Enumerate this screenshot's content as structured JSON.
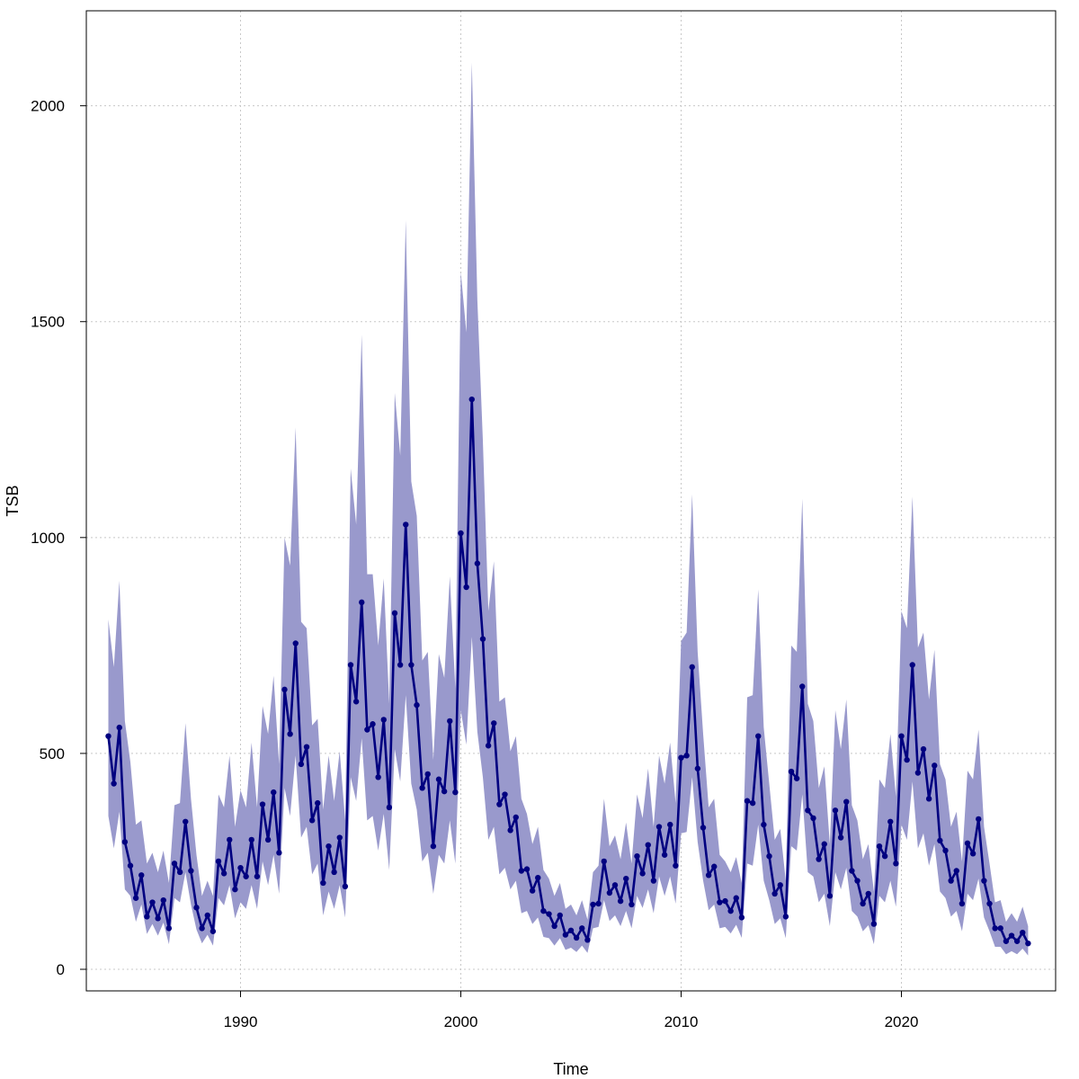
{
  "chart_data": {
    "type": "line",
    "xlabel": "Time",
    "ylabel": "TSB",
    "xlim": [
      1983.0,
      2027.0
    ],
    "ylim": [
      -50,
      2220
    ],
    "xticks": [
      1990,
      2000,
      2010,
      2020
    ],
    "xtick_labels": [
      "1990",
      "2000",
      "2010",
      "2020"
    ],
    "yticks": [
      0,
      500,
      1000,
      1500,
      2000
    ],
    "ytick_labels": [
      "0",
      "500",
      "1000",
      "1500",
      "2000"
    ],
    "grid": true,
    "colors": {
      "line": "#000080",
      "band": "#9999cc"
    },
    "series": [
      {
        "style": "line-with-points",
        "x": [
          1984.0,
          1984.25,
          1984.5,
          1984.75,
          1985.0,
          1985.25,
          1985.5,
          1985.75,
          1986.0,
          1986.25,
          1986.5,
          1986.75,
          1987.0,
          1987.25,
          1987.5,
          1987.75,
          1988.0,
          1988.25,
          1988.5,
          1988.75,
          1989.0,
          1989.25,
          1989.5,
          1989.75,
          1990.0,
          1990.25,
          1990.5,
          1990.75,
          1991.0,
          1991.25,
          1991.5,
          1991.75,
          1992.0,
          1992.25,
          1992.5,
          1992.75,
          1993.0,
          1993.25,
          1993.5,
          1993.75,
          1994.0,
          1994.25,
          1994.5,
          1994.75,
          1995.0,
          1995.25,
          1995.5,
          1995.75,
          1996.0,
          1996.25,
          1996.5,
          1996.75,
          1997.0,
          1997.25,
          1997.5,
          1997.75,
          1998.0,
          1998.25,
          1998.5,
          1998.75,
          1999.0,
          1999.25,
          1999.5,
          1999.75,
          2000.0,
          2000.25,
          2000.5,
          2000.75,
          2001.0,
          2001.25,
          2001.5,
          2001.75,
          2002.0,
          2002.25,
          2002.5,
          2002.75,
          2003.0,
          2003.25,
          2003.5,
          2003.75,
          2004.0,
          2004.25,
          2004.5,
          2004.75,
          2005.0,
          2005.25,
          2005.5,
          2005.75,
          2006.0,
          2006.25,
          2006.5,
          2006.75,
          2007.0,
          2007.25,
          2007.5,
          2007.75,
          2008.0,
          2008.25,
          2008.5,
          2008.75,
          2009.0,
          2009.25,
          2009.5,
          2009.75,
          2010.0,
          2010.25,
          2010.5,
          2010.75,
          2011.0,
          2011.25,
          2011.5,
          2011.75,
          2012.0,
          2012.25,
          2012.5,
          2012.75,
          2013.0,
          2013.25,
          2013.5,
          2013.75,
          2014.0,
          2014.25,
          2014.5,
          2014.75,
          2015.0,
          2015.25,
          2015.5,
          2015.75,
          2016.0,
          2016.25,
          2016.5,
          2016.75,
          2017.0,
          2017.25,
          2017.5,
          2017.75,
          2018.0,
          2018.25,
          2018.5,
          2018.75,
          2019.0,
          2019.25,
          2019.5,
          2019.75,
          2020.0,
          2020.25,
          2020.5,
          2020.75,
          2021.0,
          2021.25,
          2021.5,
          2021.75,
          2022.0,
          2022.25,
          2022.5,
          2022.75,
          2023.0,
          2023.25,
          2023.5,
          2023.75,
          2024.0,
          2024.25,
          2024.5,
          2024.75,
          2025.0,
          2025.25,
          2025.5,
          2025.75
        ],
        "y": [
          540,
          430,
          560,
          295,
          240,
          165,
          218,
          122,
          155,
          118,
          160,
          95,
          245,
          225,
          342,
          228,
          143,
          95,
          125,
          88,
          250,
          222,
          300,
          185,
          235,
          215,
          300,
          215,
          382,
          300,
          410,
          270,
          648,
          545,
          755,
          475,
          515,
          345,
          385,
          200,
          285,
          225,
          305,
          192,
          705,
          620,
          850,
          555,
          568,
          445,
          578,
          375,
          825,
          705,
          1030,
          705,
          612,
          420,
          452,
          285,
          440,
          412,
          575,
          410,
          1010,
          885,
          1320,
          940,
          765,
          518,
          570,
          382,
          405,
          322,
          352,
          228,
          232,
          182,
          212,
          135,
          128,
          100,
          125,
          80,
          90,
          73,
          95,
          68,
          150,
          152,
          250,
          177,
          195,
          158,
          210,
          150,
          262,
          222,
          288,
          205,
          330,
          265,
          335,
          240,
          490,
          495,
          700,
          465,
          328,
          218,
          238,
          155,
          158,
          135,
          165,
          120,
          390,
          385,
          540,
          335,
          262,
          175,
          195,
          122,
          458,
          442,
          655,
          368,
          350,
          255,
          290,
          170,
          368,
          305,
          388,
          228,
          205,
          152,
          175,
          105,
          285,
          262,
          342,
          245,
          540,
          485,
          705,
          455,
          510,
          395,
          472,
          298,
          275,
          205,
          228,
          152,
          292,
          268,
          348,
          205,
          152,
          95,
          95,
          65,
          78,
          65,
          85,
          60
        ],
        "upper": [
          810,
          700,
          900,
          575,
          480,
          335,
          345,
          245,
          270,
          225,
          275,
          200,
          380,
          385,
          570,
          395,
          265,
          170,
          205,
          170,
          405,
          375,
          495,
          330,
          415,
          375,
          525,
          375,
          610,
          545,
          680,
          475,
          1000,
          935,
          1255,
          805,
          790,
          565,
          580,
          370,
          495,
          390,
          505,
          345,
          1160,
          1030,
          1470,
          915,
          915,
          750,
          905,
          615,
          1335,
          1190,
          1735,
          1130,
          1050,
          715,
          735,
          485,
          730,
          675,
          910,
          650,
          1615,
          1475,
          2100,
          1550,
          1225,
          830,
          945,
          620,
          630,
          505,
          540,
          395,
          360,
          290,
          330,
          230,
          210,
          170,
          200,
          140,
          150,
          125,
          160,
          115,
          225,
          240,
          395,
          285,
          310,
          255,
          340,
          245,
          405,
          350,
          465,
          330,
          495,
          430,
          525,
          385,
          760,
          780,
          1100,
          735,
          545,
          375,
          395,
          265,
          250,
          225,
          260,
          200,
          630,
          635,
          880,
          560,
          430,
          300,
          325,
          205,
          750,
          735,
          1090,
          615,
          575,
          420,
          470,
          290,
          600,
          510,
          625,
          380,
          345,
          255,
          290,
          180,
          440,
          420,
          545,
          400,
          830,
          790,
          1095,
          745,
          780,
          625,
          740,
          475,
          440,
          330,
          365,
          250,
          460,
          440,
          555,
          330,
          245,
          155,
          160,
          110,
          130,
          110,
          145,
          100
        ],
        "lower": [
          355,
          280,
          365,
          185,
          170,
          110,
          150,
          82,
          105,
          78,
          108,
          58,
          165,
          155,
          225,
          150,
          92,
          60,
          80,
          55,
          165,
          148,
          195,
          118,
          155,
          140,
          195,
          140,
          250,
          195,
          265,
          175,
          420,
          355,
          495,
          305,
          330,
          220,
          245,
          125,
          180,
          140,
          195,
          120,
          445,
          390,
          535,
          345,
          355,
          275,
          360,
          230,
          510,
          435,
          635,
          430,
          370,
          250,
          270,
          175,
          265,
          245,
          345,
          245,
          600,
          520,
          770,
          550,
          445,
          300,
          330,
          220,
          235,
          185,
          205,
          130,
          135,
          105,
          120,
          75,
          72,
          55,
          72,
          45,
          50,
          40,
          55,
          38,
          95,
          98,
          160,
          112,
          125,
          100,
          135,
          95,
          170,
          142,
          185,
          130,
          215,
          170,
          215,
          152,
          315,
          318,
          445,
          295,
          205,
          137,
          150,
          95,
          98,
          83,
          103,
          73,
          245,
          240,
          335,
          205,
          160,
          105,
          118,
          72,
          285,
          275,
          405,
          225,
          215,
          155,
          175,
          100,
          225,
          185,
          235,
          135,
          122,
          88,
          102,
          58,
          170,
          155,
          205,
          145,
          335,
          300,
          435,
          280,
          315,
          240,
          290,
          180,
          165,
          122,
          135,
          88,
          175,
          160,
          210,
          120,
          88,
          52,
          52,
          35,
          42,
          35,
          48,
          32
        ]
      }
    ]
  }
}
